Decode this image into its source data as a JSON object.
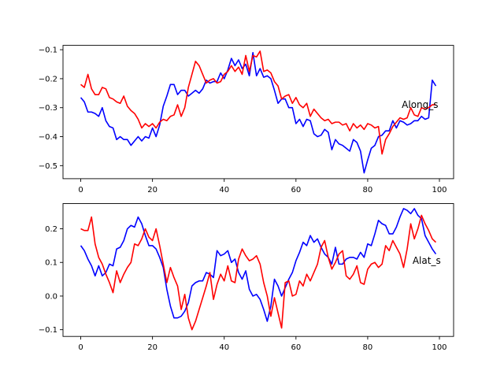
{
  "chart_data": [
    {
      "type": "line",
      "title": "",
      "xlabel": "",
      "ylabel": "",
      "xlim": [
        -4.95,
        103.95
      ],
      "ylim": [
        -0.545,
        -0.085
      ],
      "xticks": [
        0,
        20,
        40,
        60,
        80,
        100
      ],
      "yticks": [
        -0.5,
        -0.4,
        -0.3,
        -0.2,
        -0.1
      ],
      "ytick_labels": [
        "−0.5",
        "−0.4",
        "−0.3",
        "−0.2",
        "−0.1"
      ],
      "annotation": {
        "text": "Along_s",
        "x": 89.5,
        "y": -0.29
      },
      "grid": false,
      "series": [
        {
          "color": "#0000ff",
          "values": [
            -0.265,
            -0.28,
            -0.315,
            -0.315,
            -0.32,
            -0.33,
            -0.3,
            -0.345,
            -0.365,
            -0.37,
            -0.41,
            -0.4,
            -0.41,
            -0.41,
            -0.43,
            -0.415,
            -0.4,
            -0.415,
            -0.4,
            -0.405,
            -0.37,
            -0.4,
            -0.36,
            -0.295,
            -0.26,
            -0.22,
            -0.22,
            -0.255,
            -0.24,
            -0.24,
            -0.26,
            -0.25,
            -0.24,
            -0.25,
            -0.235,
            -0.205,
            -0.215,
            -0.21,
            -0.21,
            -0.18,
            -0.2,
            -0.17,
            -0.13,
            -0.155,
            -0.135,
            -0.165,
            -0.15,
            -0.19,
            -0.11,
            -0.19,
            -0.165,
            -0.195,
            -0.19,
            -0.2,
            -0.24,
            -0.285,
            -0.27,
            -0.27,
            -0.3,
            -0.3,
            -0.355,
            -0.34,
            -0.365,
            -0.34,
            -0.345,
            -0.39,
            -0.4,
            -0.395,
            -0.375,
            -0.385,
            -0.445,
            -0.41,
            -0.425,
            -0.43,
            -0.44,
            -0.45,
            -0.41,
            -0.42,
            -0.45,
            -0.525,
            -0.48,
            -0.44,
            -0.43,
            -0.4,
            -0.395,
            -0.38,
            -0.38,
            -0.345,
            -0.37,
            -0.345,
            -0.35,
            -0.36,
            -0.355,
            -0.345,
            -0.345,
            -0.33,
            -0.34,
            -0.335,
            -0.205,
            -0.225
          ]
        },
        {
          "color": "#ff0000",
          "values": [
            -0.22,
            -0.23,
            -0.185,
            -0.235,
            -0.255,
            -0.255,
            -0.23,
            -0.235,
            -0.265,
            -0.27,
            -0.28,
            -0.285,
            -0.26,
            -0.295,
            -0.31,
            -0.32,
            -0.34,
            -0.37,
            -0.355,
            -0.365,
            -0.355,
            -0.37,
            -0.35,
            -0.34,
            -0.345,
            -0.33,
            -0.325,
            -0.29,
            -0.33,
            -0.3,
            -0.23,
            -0.185,
            -0.14,
            -0.155,
            -0.185,
            -0.215,
            -0.205,
            -0.2,
            -0.215,
            -0.21,
            -0.185,
            -0.175,
            -0.155,
            -0.175,
            -0.16,
            -0.185,
            -0.12,
            -0.175,
            -0.12,
            -0.125,
            -0.105,
            -0.175,
            -0.17,
            -0.18,
            -0.21,
            -0.225,
            -0.27,
            -0.26,
            -0.255,
            -0.285,
            -0.265,
            -0.29,
            -0.3,
            -0.285,
            -0.33,
            -0.305,
            -0.32,
            -0.335,
            -0.345,
            -0.34,
            -0.355,
            -0.35,
            -0.35,
            -0.36,
            -0.355,
            -0.38,
            -0.355,
            -0.37,
            -0.36,
            -0.375,
            -0.355,
            -0.36,
            -0.37,
            -0.365,
            -0.46,
            -0.41,
            -0.39,
            -0.365,
            -0.35,
            -0.335,
            -0.34,
            -0.335,
            -0.3,
            -0.325,
            -0.33,
            -0.3,
            -0.305,
            -0.3,
            -0.29,
            -0.29
          ]
        }
      ]
    },
    {
      "type": "line",
      "title": "",
      "xlabel": "",
      "ylabel": "",
      "xlim": [
        -4.95,
        103.95
      ],
      "ylim": [
        -0.12,
        0.275
      ],
      "xticks": [
        0,
        20,
        40,
        60,
        80,
        100
      ],
      "yticks": [
        -0.1,
        0.0,
        0.1,
        0.2
      ],
      "ytick_labels": [
        "−0.1",
        "0.0",
        "0.1",
        "0.2"
      ],
      "annotation": {
        "text": "Alat_s",
        "x": 92.5,
        "y": 0.105
      },
      "grid": false,
      "series": [
        {
          "color": "#0000ff",
          "values": [
            0.15,
            0.135,
            0.11,
            0.09,
            0.06,
            0.09,
            0.06,
            0.07,
            0.095,
            0.09,
            0.14,
            0.145,
            0.165,
            0.2,
            0.21,
            0.205,
            0.235,
            0.215,
            0.18,
            0.15,
            0.15,
            0.14,
            0.115,
            0.085,
            0.02,
            -0.03,
            -0.065,
            -0.065,
            -0.06,
            -0.045,
            -0.02,
            0.03,
            0.04,
            0.045,
            0.045,
            0.07,
            0.065,
            0.055,
            0.135,
            0.12,
            0.125,
            0.135,
            0.1,
            0.11,
            0.07,
            0.05,
            0.075,
            0.02,
            0.0,
            0.005,
            -0.01,
            -0.04,
            -0.075,
            -0.03,
            0.05,
            0.03,
            0.0,
            0.025,
            0.05,
            0.07,
            0.105,
            0.13,
            0.16,
            0.15,
            0.18,
            0.16,
            0.17,
            0.145,
            0.125,
            0.115,
            0.095,
            0.145,
            0.095,
            0.095,
            0.11,
            0.115,
            0.115,
            0.11,
            0.13,
            0.115,
            0.155,
            0.15,
            0.185,
            0.225,
            0.215,
            0.21,
            0.185,
            0.185,
            0.205,
            0.235,
            0.26,
            0.255,
            0.245,
            0.26,
            0.24,
            0.23,
            0.18,
            0.16,
            0.14,
            0.125
          ]
        },
        {
          "color": "#ff0000",
          "values": [
            0.2,
            0.195,
            0.195,
            0.235,
            0.155,
            0.115,
            0.095,
            0.065,
            0.04,
            0.01,
            0.075,
            0.04,
            0.065,
            0.085,
            0.1,
            0.155,
            0.15,
            0.17,
            0.2,
            0.175,
            0.165,
            0.2,
            0.15,
            0.095,
            0.04,
            0.085,
            0.055,
            0.03,
            -0.04,
            0.005,
            -0.065,
            -0.1,
            -0.075,
            -0.04,
            -0.005,
            0.03,
            0.07,
            -0.01,
            0.035,
            0.065,
            0.045,
            0.09,
            0.045,
            0.04,
            0.11,
            0.14,
            0.12,
            0.105,
            0.11,
            0.12,
            0.095,
            0.04,
            0.0,
            -0.06,
            -0.005,
            -0.05,
            -0.095,
            0.04,
            0.045,
            0.0,
            0.005,
            0.045,
            0.03,
            0.065,
            0.045,
            0.07,
            0.095,
            0.145,
            0.165,
            0.115,
            0.08,
            0.1,
            0.125,
            0.135,
            0.06,
            0.05,
            0.065,
            0.09,
            0.04,
            0.035,
            0.08,
            0.095,
            0.1,
            0.085,
            0.095,
            0.15,
            0.135,
            0.165,
            0.145,
            0.125,
            0.085,
            0.14,
            0.215,
            0.17,
            0.2,
            0.24,
            0.215,
            0.195,
            0.17,
            0.16
          ]
        }
      ]
    }
  ]
}
